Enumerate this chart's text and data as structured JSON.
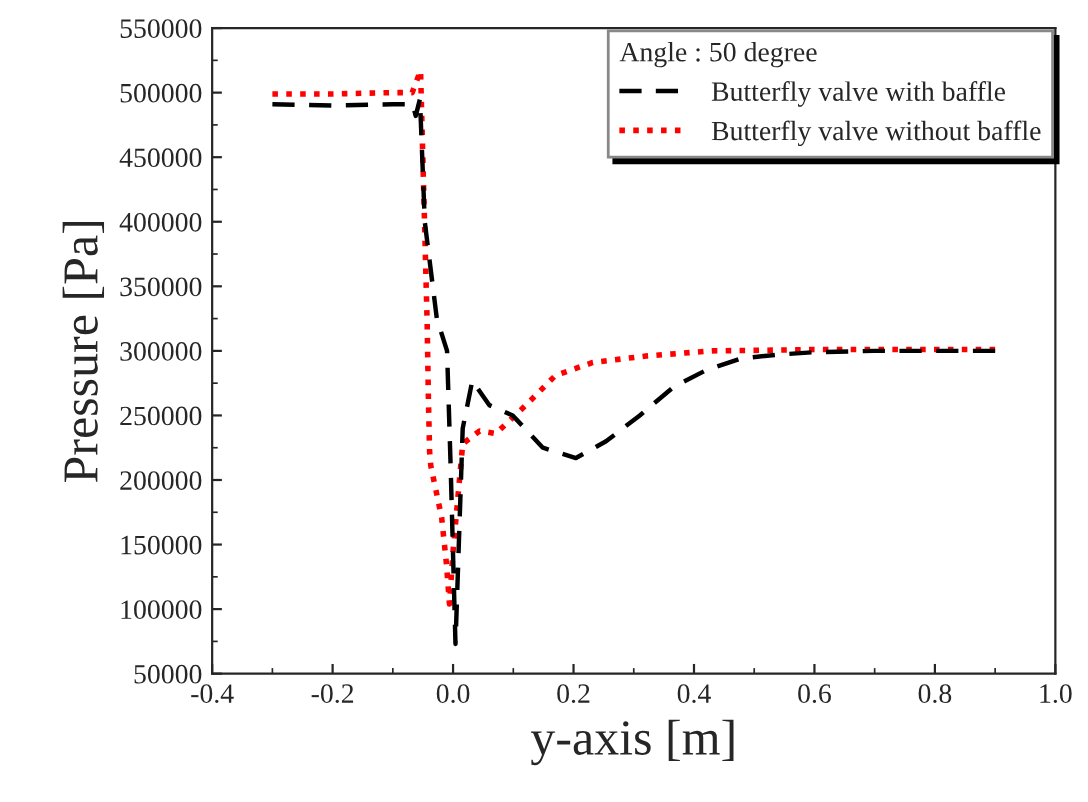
{
  "chart_data": {
    "type": "line",
    "xlabel": "y-axis [m]",
    "ylabel": "Pressure [Pa]",
    "legend_title": "Angle : 50 degree",
    "xlim": [
      -0.4,
      1.0
    ],
    "xticks": [
      {
        "value": -0.4,
        "label": "-0.4"
      },
      {
        "value": -0.2,
        "label": "-0.2"
      },
      {
        "value": 0.0,
        "label": "0.0"
      },
      {
        "value": 0.2,
        "label": "0.2"
      },
      {
        "value": 0.4,
        "label": "0.4"
      },
      {
        "value": 0.6,
        "label": "0.6"
      },
      {
        "value": 0.8,
        "label": "0.8"
      },
      {
        "value": 1.0,
        "label": "1.0"
      }
    ],
    "ylim": [
      50000,
      550000
    ],
    "yticks": [
      50000,
      100000,
      150000,
      200000,
      250000,
      300000,
      350000,
      400000,
      450000,
      500000,
      550000
    ],
    "legend": "top right",
    "grid": false,
    "series": [
      {
        "name": "Butterfly valve with baffle",
        "color": "#000000",
        "line_style": "dashed",
        "x": [
          -0.3,
          -0.2,
          -0.1,
          -0.067,
          -0.062,
          -0.055,
          -0.047,
          -0.027,
          -0.01,
          -0.004,
          0.004,
          0.016,
          0.032,
          0.06,
          0.099,
          0.149,
          0.204,
          0.254,
          0.31,
          0.366,
          0.42,
          0.477,
          0.537,
          0.6,
          0.7,
          0.8,
          0.9
        ],
        "values": [
          491000,
          490000,
          491000,
          491000,
          482000,
          495000,
          400000,
          325000,
          300000,
          210000,
          73000,
          240000,
          277000,
          258000,
          250000,
          225000,
          217000,
          230000,
          250000,
          272000,
          285000,
          294000,
          297000,
          299000,
          300000,
          300000,
          300000
        ]
      },
      {
        "name": "Butterfly valve without baffle",
        "color": "#ff0000",
        "line_style": "dotted",
        "x": [
          -0.3,
          -0.2,
          -0.1,
          -0.068,
          -0.054,
          -0.043,
          -0.041,
          -0.039,
          -0.037,
          -0.019,
          -0.011,
          -0.006,
          0.0,
          0.016,
          0.044,
          0.071,
          0.121,
          0.17,
          0.232,
          0.32,
          0.43,
          0.6,
          0.75,
          0.9
        ],
        "values": [
          499000,
          499000,
          500000,
          500000,
          517000,
          321000,
          264000,
          222000,
          211000,
          171000,
          135000,
          104000,
          145000,
          228000,
          238000,
          236000,
          258000,
          281000,
          291000,
          296000,
          300000,
          301000,
          301000,
          301000
        ]
      }
    ]
  }
}
